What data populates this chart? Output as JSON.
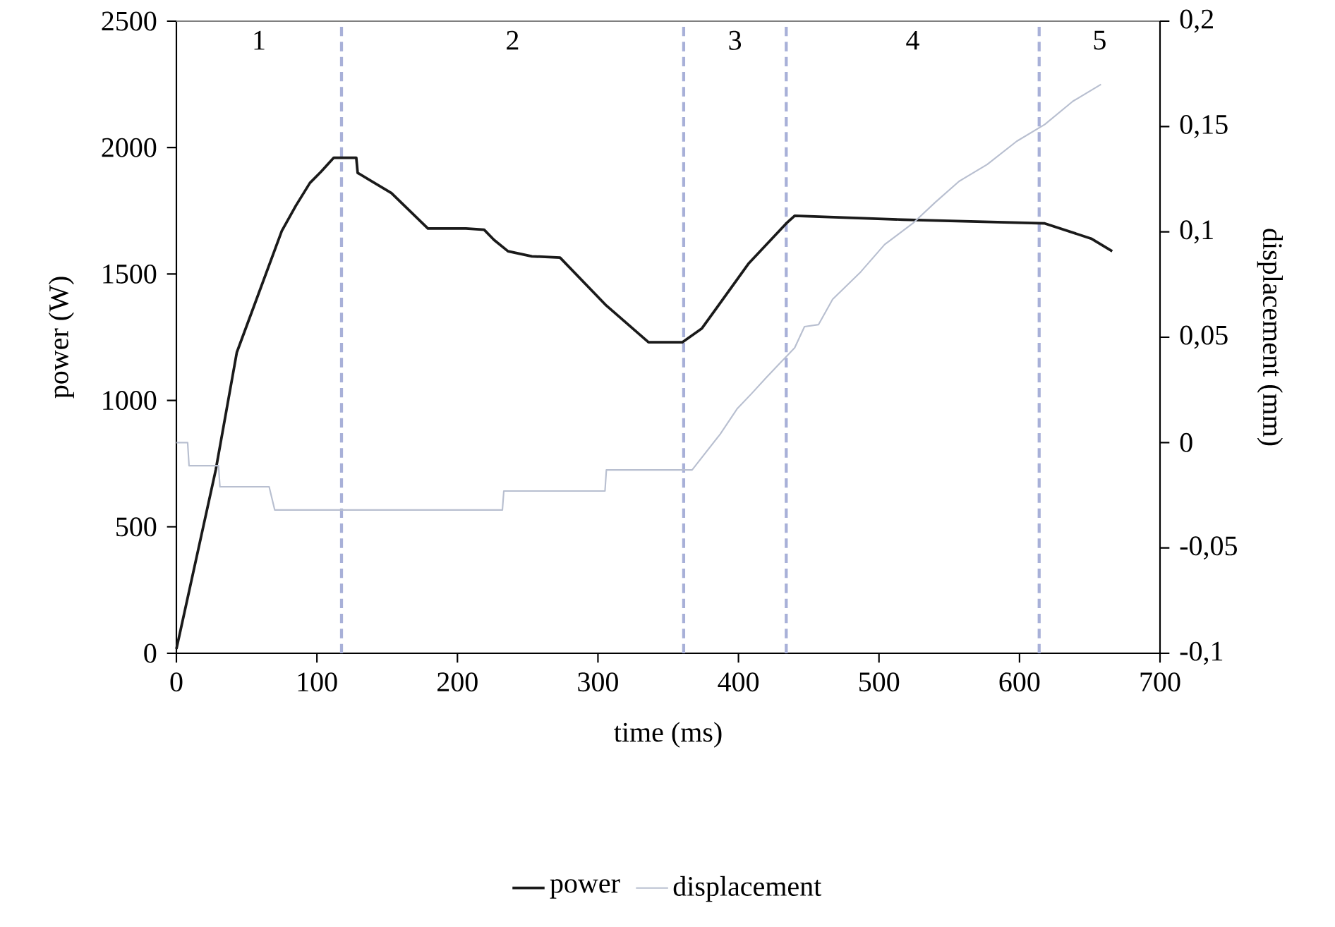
{
  "chart_data": {
    "type": "line",
    "xlabel": "time (ms)",
    "ylabel": "power (W)",
    "y2label": "displacement (mm)",
    "xlim": [
      0,
      700
    ],
    "xticks": [
      0,
      100,
      200,
      300,
      400,
      500,
      600,
      700
    ],
    "ylim": [
      0,
      2500
    ],
    "yticks": [
      0,
      500,
      1000,
      1500,
      2000,
      2500
    ],
    "y2lim": [
      -0.1,
      0.2
    ],
    "y2ticks": [
      {
        "value": -0.1,
        "label": "-0,1"
      },
      {
        "value": -0.05,
        "label": "-0,05"
      },
      {
        "value": 0,
        "label": "0"
      },
      {
        "value": 0.05,
        "label": "0,05"
      },
      {
        "value": 0.1,
        "label": "0,1"
      },
      {
        "value": 0.15,
        "label": "0,15"
      },
      {
        "value": 0.2,
        "label": "0,2"
      }
    ],
    "legend": "bottom",
    "series": [
      {
        "name": "power",
        "color": "#1a1a1a",
        "x": [
          0,
          28,
          43,
          55,
          75,
          85,
          95,
          103,
          112,
          128,
          129,
          153,
          179,
          206,
          219,
          226,
          236,
          253,
          273,
          306,
          336,
          360,
          374,
          407,
          434,
          440,
          517,
          618,
          651,
          666
        ],
        "values": [
          17,
          725,
          1190,
          1370,
          1670,
          1770,
          1860,
          1905,
          1960,
          1960,
          1900,
          1820,
          1680,
          1680,
          1675,
          1635,
          1590,
          1570,
          1565,
          1375,
          1230,
          1230,
          1285,
          1540,
          1700,
          1730,
          1715,
          1700,
          1640,
          1590
        ]
      },
      {
        "name": "displacement",
        "color": "#b8bfd0",
        "axis": "y2",
        "x": [
          0,
          8,
          9,
          30,
          31,
          66,
          70,
          232,
          233,
          305,
          306,
          367,
          387,
          399,
          409,
          420,
          430,
          440,
          447,
          457,
          467,
          487,
          504,
          524,
          540,
          557,
          577,
          598,
          618,
          638,
          658
        ],
        "values": [
          0,
          0,
          -0.011,
          -0.011,
          -0.021,
          -0.021,
          -0.032,
          -0.032,
          -0.023,
          -0.023,
          -0.013,
          -0.013,
          0.004,
          0.016,
          0.023,
          0.031,
          0.038,
          0.045,
          0.055,
          0.056,
          0.068,
          0.081,
          0.094,
          0.104,
          0.114,
          0.124,
          0.132,
          0.143,
          0.151,
          0.162,
          0.17
        ]
      }
    ],
    "ref_lines": [
      {
        "axis": "x",
        "value": 117.5,
        "color": "#a8b0d8",
        "line_style": "dashed"
      },
      {
        "axis": "x",
        "value": 361,
        "color": "#a8b0d8",
        "line_style": "dashed"
      },
      {
        "axis": "x",
        "value": 434,
        "color": "#a8b0d8",
        "line_style": "dashed"
      },
      {
        "axis": "x",
        "value": 614,
        "color": "#a8b0d8",
        "line_style": "dashed"
      }
    ],
    "annotations": [
      "1",
      "2",
      "3",
      "4",
      "5"
    ]
  }
}
